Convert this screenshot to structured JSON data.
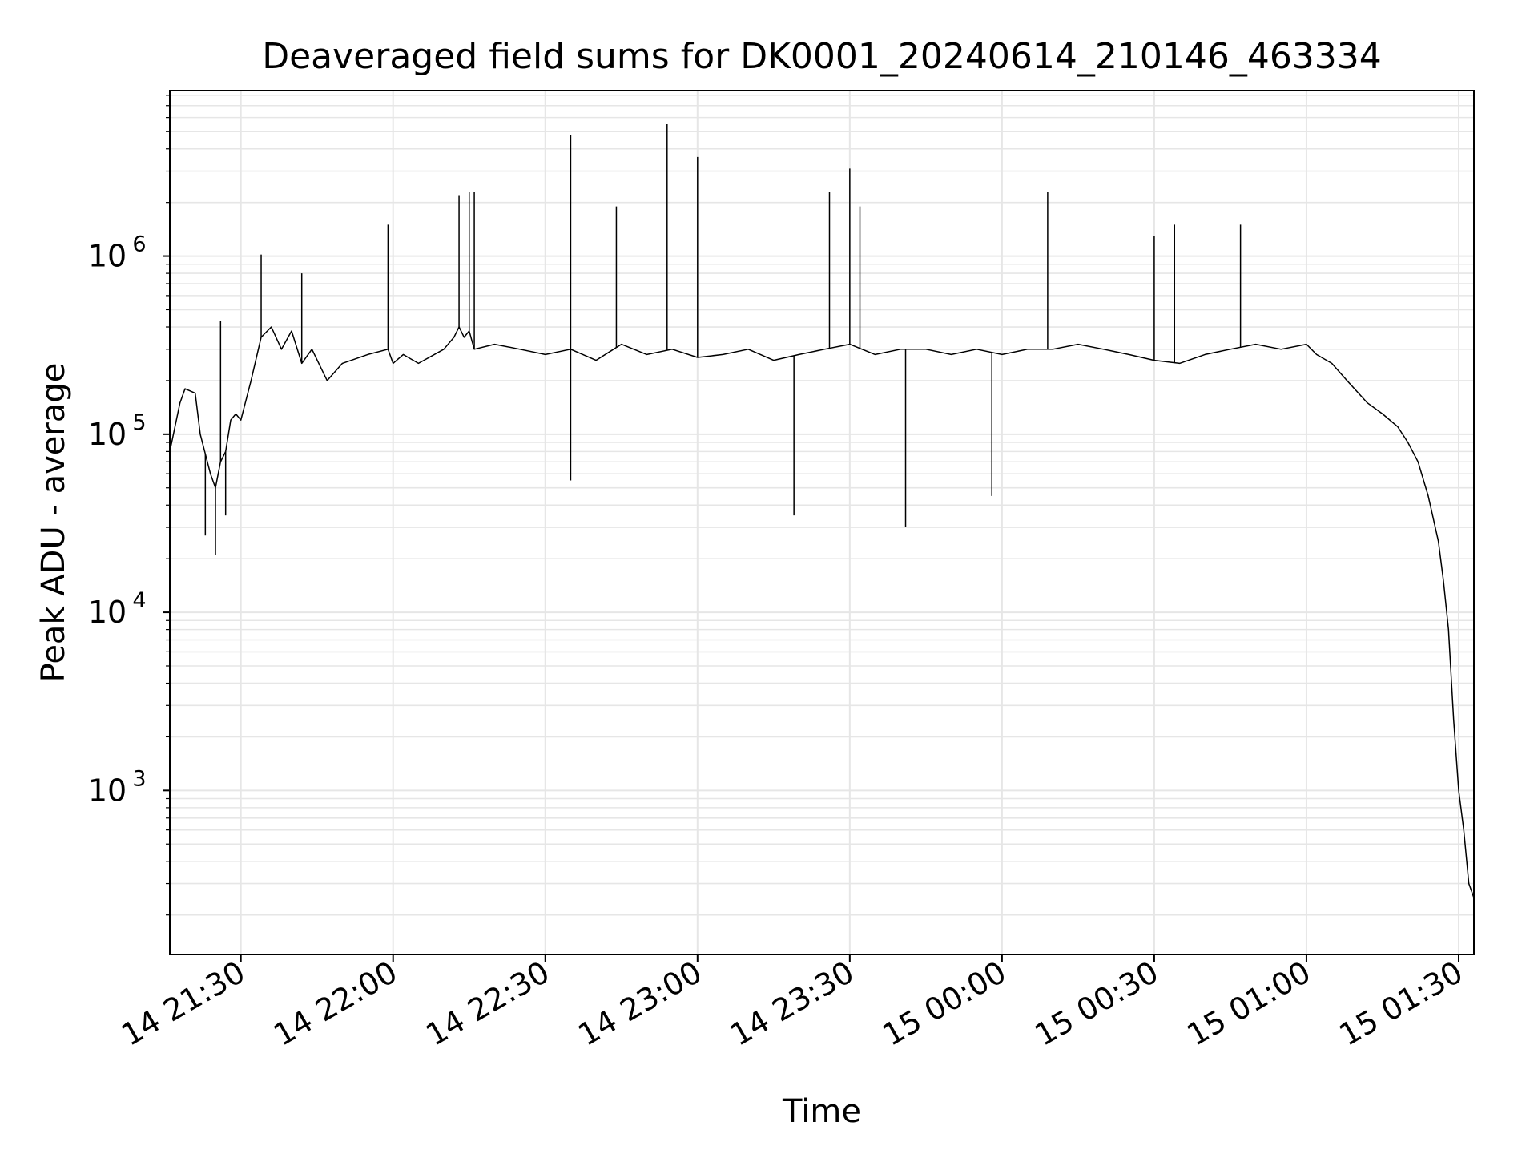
{
  "chart_data": {
    "type": "line",
    "title": "Deaveraged field sums for DK0001_20240614_210146_463334",
    "xlabel": "Time",
    "ylabel": "Peak ADU - average",
    "yscale": "log",
    "ylim": [
      120,
      8500000
    ],
    "xlim": [
      "2024-06-14 21:16",
      "2024-06-15 01:33"
    ],
    "grid": true,
    "x_ticks": [
      {
        "time": "2024-06-14 21:30",
        "label": "14 21:30"
      },
      {
        "time": "2024-06-14 22:00",
        "label": "14 22:00"
      },
      {
        "time": "2024-06-14 22:30",
        "label": "14 22:30"
      },
      {
        "time": "2024-06-14 23:00",
        "label": "14 23:00"
      },
      {
        "time": "2024-06-14 23:30",
        "label": "14 23:30"
      },
      {
        "time": "2024-06-15 00:00",
        "label": "15 00:00"
      },
      {
        "time": "2024-06-15 00:30",
        "label": "15 00:30"
      },
      {
        "time": "2024-06-15 01:00",
        "label": "15 01:00"
      },
      {
        "time": "2024-06-15 01:30",
        "label": "15 01:30"
      }
    ],
    "y_ticks": [
      {
        "value": 1000,
        "base": "10",
        "exp": "3"
      },
      {
        "value": 10000,
        "base": "10",
        "exp": "4"
      },
      {
        "value": 100000,
        "base": "10",
        "exp": "5"
      },
      {
        "value": 1000000,
        "base": "10",
        "exp": "6"
      }
    ],
    "line_color": "#000000",
    "grid_color": "#e6e6e6",
    "series": [
      {
        "x": [
          "2024-06-14 21:16",
          "2024-06-14 21:18",
          "2024-06-14 21:19",
          "2024-06-14 21:21",
          "2024-06-14 21:22",
          "2024-06-14 21:24",
          "2024-06-14 21:25",
          "2024-06-14 21:26",
          "2024-06-14 21:27",
          "2024-06-14 21:28",
          "2024-06-14 21:29",
          "2024-06-14 21:30",
          "2024-06-14 21:32",
          "2024-06-14 21:34",
          "2024-06-14 21:36",
          "2024-06-14 21:38",
          "2024-06-14 21:40",
          "2024-06-14 21:42",
          "2024-06-14 21:44",
          "2024-06-14 21:47",
          "2024-06-14 21:50",
          "2024-06-14 21:55",
          "2024-06-14 21:59",
          "2024-06-14 22:00",
          "2024-06-14 22:02",
          "2024-06-14 22:05",
          "2024-06-14 22:10",
          "2024-06-14 22:12",
          "2024-06-14 22:13",
          "2024-06-14 22:14",
          "2024-06-14 22:15",
          "2024-06-14 22:16",
          "2024-06-14 22:20",
          "2024-06-14 22:25",
          "2024-06-14 22:30",
          "2024-06-14 22:35",
          "2024-06-14 22:40",
          "2024-06-14 22:45",
          "2024-06-14 22:50",
          "2024-06-14 22:55",
          "2024-06-14 23:00",
          "2024-06-14 23:05",
          "2024-06-14 23:10",
          "2024-06-14 23:15",
          "2024-06-14 23:20",
          "2024-06-14 23:25",
          "2024-06-14 23:30",
          "2024-06-14 23:35",
          "2024-06-14 23:40",
          "2024-06-14 23:45",
          "2024-06-14 23:50",
          "2024-06-14 23:55",
          "2024-06-15 00:00",
          "2024-06-15 00:05",
          "2024-06-15 00:10",
          "2024-06-15 00:15",
          "2024-06-15 00:20",
          "2024-06-15 00:25",
          "2024-06-15 00:30",
          "2024-06-15 00:35",
          "2024-06-15 00:40",
          "2024-06-15 00:45",
          "2024-06-15 00:50",
          "2024-06-15 00:55",
          "2024-06-15 01:00",
          "2024-06-15 01:02",
          "2024-06-15 01:05",
          "2024-06-15 01:08",
          "2024-06-15 01:12",
          "2024-06-15 01:15",
          "2024-06-15 01:18",
          "2024-06-15 01:20",
          "2024-06-15 01:22",
          "2024-06-15 01:24",
          "2024-06-15 01:26",
          "2024-06-15 01:27",
          "2024-06-15 01:28",
          "2024-06-15 01:29",
          "2024-06-15 01:30",
          "2024-06-15 01:31",
          "2024-06-15 01:32",
          "2024-06-15 01:33"
        ],
        "y": [
          80000,
          150000,
          180000,
          170000,
          100000,
          60000,
          50000,
          70000,
          80000,
          120000,
          130000,
          120000,
          200000,
          350000,
          400000,
          300000,
          380000,
          250000,
          300000,
          200000,
          250000,
          280000,
          300000,
          250000,
          280000,
          250000,
          300000,
          350000,
          400000,
          350000,
          380000,
          300000,
          320000,
          300000,
          280000,
          300000,
          260000,
          320000,
          280000,
          300000,
          270000,
          280000,
          300000,
          260000,
          280000,
          300000,
          320000,
          280000,
          300000,
          300000,
          280000,
          300000,
          280000,
          300000,
          300000,
          320000,
          300000,
          280000,
          260000,
          250000,
          280000,
          300000,
          320000,
          300000,
          320000,
          280000,
          250000,
          200000,
          150000,
          130000,
          110000,
          90000,
          70000,
          45000,
          25000,
          15000,
          8000,
          2500,
          1000,
          600,
          300,
          250
        ]
      }
    ],
    "spikes": [
      {
        "x": "2024-06-14 21:23",
        "y": 27000
      },
      {
        "x": "2024-06-14 21:25",
        "y": 21000
      },
      {
        "x": "2024-06-14 21:26",
        "y": 430000
      },
      {
        "x": "2024-06-14 21:27",
        "y": 35000
      },
      {
        "x": "2024-06-14 21:34",
        "y": 1020000
      },
      {
        "x": "2024-06-14 21:42",
        "y": 800000
      },
      {
        "x": "2024-06-14 21:59",
        "y": 1500000
      },
      {
        "x": "2024-06-14 22:13",
        "y": 2200000
      },
      {
        "x": "2024-06-14 22:15",
        "y": 2300000
      },
      {
        "x": "2024-06-14 22:16",
        "y": 2300000
      },
      {
        "x": "2024-06-14 22:35",
        "y": 4800000
      },
      {
        "x": "2024-06-14 22:35",
        "y": 55000
      },
      {
        "x": "2024-06-14 22:44",
        "y": 1900000
      },
      {
        "x": "2024-06-14 22:54",
        "y": 5500000
      },
      {
        "x": "2024-06-14 23:00",
        "y": 3600000
      },
      {
        "x": "2024-06-14 23:19",
        "y": 35000
      },
      {
        "x": "2024-06-14 23:26",
        "y": 2300000
      },
      {
        "x": "2024-06-14 23:30",
        "y": 3100000
      },
      {
        "x": "2024-06-14 23:32",
        "y": 1900000
      },
      {
        "x": "2024-06-14 23:41",
        "y": 30000
      },
      {
        "x": "2024-06-14 23:58",
        "y": 45000
      },
      {
        "x": "2024-06-15 00:09",
        "y": 2300000
      },
      {
        "x": "2024-06-15 00:30",
        "y": 1300000
      },
      {
        "x": "2024-06-15 00:34",
        "y": 1500000
      },
      {
        "x": "2024-06-15 00:47",
        "y": 1500000
      }
    ]
  }
}
